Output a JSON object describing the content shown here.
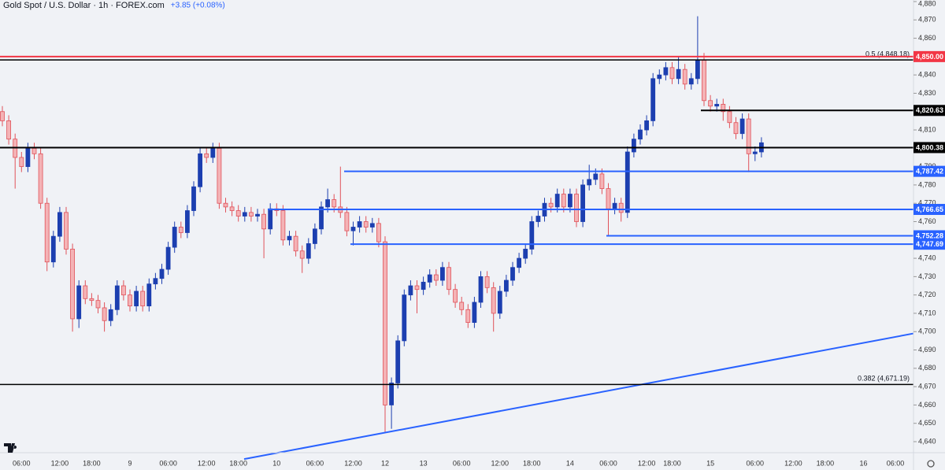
{
  "chart_data": {
    "type": "candlestick",
    "title": "Gold Spot / U.S. Dollar · 1h · FOREX.com",
    "subtitle": "+3.85 (+0.08%)",
    "up_color": "#1c3fb0",
    "down_color": "#f4b3b6",
    "down_edge_color": "#e0525a",
    "categories": [
      null,
      null,
      null,
      "06:00",
      null,
      null,
      null,
      null,
      null,
      "12:00",
      null,
      null,
      null,
      null,
      "18:00",
      null,
      null,
      null,
      null,
      null,
      "9",
      null,
      null,
      null,
      null,
      null,
      "06:00",
      null,
      null,
      null,
      null,
      null,
      "12:00",
      null,
      null,
      null,
      null,
      "18:00",
      null,
      null,
      null,
      null,
      null,
      "10",
      null,
      null,
      null,
      null,
      null,
      "06:00",
      null,
      null,
      null,
      null,
      null,
      "12:00",
      null,
      null,
      null,
      null,
      "12",
      null,
      null,
      null,
      null,
      null,
      "13",
      null,
      null,
      null,
      null,
      null,
      "06:00",
      null,
      null,
      null,
      null,
      null,
      "12:00",
      null,
      null,
      null,
      null,
      "18:00",
      null,
      null,
      null,
      null,
      null,
      "14",
      null,
      null,
      null,
      null,
      null,
      "06:00",
      null,
      null,
      null,
      null,
      null,
      "12:00",
      null,
      null,
      null,
      "18:00",
      null,
      null,
      null,
      null,
      null,
      "15",
      null,
      null,
      null,
      null,
      null,
      null,
      "06:00",
      null,
      null,
      null,
      null,
      null,
      "12:00",
      null,
      null,
      null,
      null,
      "18:00",
      null,
      null,
      null,
      null,
      null,
      "16",
      null,
      null,
      null,
      null,
      "06:00",
      null,
      null
    ],
    "open": [
      4820,
      4815,
      4805,
      4795,
      4790,
      4800,
      4797,
      4770,
      4738,
      4752,
      4765,
      4745,
      4707,
      4725,
      4718,
      4717,
      4713,
      4706,
      4712,
      4725,
      4720,
      4714,
      4722,
      4714,
      4726,
      4729,
      4734,
      4746,
      4757,
      4754,
      4766,
      4779,
      4797,
      4795,
      4800,
      4770,
      4768,
      4766,
      4763,
      4765,
      4763,
      4764,
      4756,
      4767,
      4766,
      4750,
      4752,
      4744,
      4740,
      4748,
      4756,
      4768,
      4772,
      4768,
      4765,
      4755,
      4757,
      4760,
      4757,
      4759,
      4749,
      4660,
      4672,
      4695,
      4720,
      4725,
      4723,
      4727,
      4731,
      4728,
      4735,
      4723,
      4716,
      4712,
      4705,
      4716,
      4730,
      4724,
      4710,
      4722,
      4728,
      4735,
      4740,
      4745,
      4760,
      4763,
      4770,
      4768,
      4775,
      4768,
      4775,
      4760,
      4780,
      4783,
      4786,
      4778,
      4767,
      4770,
      4765,
      4798,
      4805,
      4810,
      4815,
      4838,
      4840,
      4844,
      4838,
      4843,
      4835,
      4838,
      4848,
      4826,
      4823,
      4824,
      4820,
      4814,
      4808,
      4816,
      4797,
      4798,
      null,
      null,
      null,
      null,
      null,
      null,
      null,
      null,
      null,
      null,
      null,
      null,
      null,
      null,
      null,
      null,
      null,
      null,
      null,
      null,
      null,
      null,
      null
    ],
    "high": [
      4823,
      4818,
      4808,
      4798,
      4803,
      4803,
      4800,
      4773,
      4755,
      4768,
      4768,
      4748,
      4728,
      4728,
      4721,
      4720,
      4716,
      4715,
      4728,
      4728,
      4723,
      4725,
      4725,
      4729,
      4732,
      4737,
      4749,
      4760,
      4760,
      4769,
      4782,
      4800,
      4800,
      4803,
      4803,
      4773,
      4771,
      4769,
      4768,
      4768,
      4767,
      4767,
      4770,
      4770,
      4769,
      4755,
      4755,
      4747,
      4751,
      4759,
      4771,
      4778,
      4775,
      4790,
      4768,
      4760,
      4763,
      4763,
      4762,
      4762,
      4752,
      4675,
      4698,
      4723,
      4728,
      4728,
      4730,
      4734,
      4734,
      4738,
      4738,
      4726,
      4719,
      4715,
      4719,
      4733,
      4733,
      4727,
      4725,
      4731,
      4738,
      4743,
      4748,
      4763,
      4766,
      4773,
      4773,
      4778,
      4778,
      4778,
      4778,
      4783,
      4791,
      4789,
      4789,
      4781,
      4773,
      4773,
      4801,
      4808,
      4813,
      4818,
      4841,
      4843,
      4847,
      4847,
      4850,
      4846,
      4841,
      4872,
      4852,
      4829,
      4827,
      4827,
      4823,
      4817,
      4819,
      4819,
      4801,
      4806,
      null,
      null,
      null,
      null,
      null,
      null,
      null,
      null,
      null,
      null,
      null,
      null,
      null,
      null,
      null,
      null,
      null,
      null,
      null,
      null,
      null,
      null,
      null
    ],
    "low": [
      4812,
      4802,
      4778,
      4787,
      4787,
      4794,
      4767,
      4733,
      4735,
      4749,
      4742,
      4700,
      4702,
      4715,
      4714,
      4710,
      4700,
      4703,
      4709,
      4717,
      4711,
      4711,
      4711,
      4711,
      4723,
      4726,
      4731,
      4743,
      4751,
      4751,
      4763,
      4776,
      4792,
      4792,
      4767,
      4765,
      4763,
      4760,
      4760,
      4760,
      4760,
      4740,
      4753,
      4763,
      4747,
      4747,
      4741,
      4732,
      4737,
      4745,
      4753,
      4765,
      4765,
      4762,
      4752,
      4747,
      4754,
      4754,
      4754,
      4746,
      4645,
      4647,
      4669,
      4692,
      4717,
      4710,
      4720,
      4724,
      4725,
      4725,
      4720,
      4713,
      4709,
      4702,
      4702,
      4713,
      4721,
      4700,
      4707,
      4719,
      4725,
      4732,
      4737,
      4742,
      4757,
      4760,
      4765,
      4765,
      4765,
      4765,
      4757,
      4757,
      4777,
      4780,
      4775,
      4752,
      4764,
      4760,
      4762,
      4795,
      4802,
      4807,
      4812,
      4835,
      4837,
      4835,
      4835,
      4832,
      4832,
      4835,
      4823,
      4820,
      4820,
      4815,
      4811,
      4805,
      4805,
      4787,
      4793,
      4795,
      null,
      null,
      null,
      null,
      null,
      null,
      null,
      null,
      null,
      null,
      null,
      null,
      null,
      null,
      null,
      null,
      null,
      null,
      null,
      null,
      null,
      null,
      null
    ],
    "close": [
      4815,
      4805,
      4795,
      4790,
      4800,
      4797,
      4770,
      4738,
      4752,
      4765,
      4745,
      4707,
      4725,
      4718,
      4717,
      4713,
      4706,
      4712,
      4725,
      4720,
      4714,
      4722,
      4714,
      4726,
      4729,
      4734,
      4746,
      4757,
      4754,
      4766,
      4779,
      4797,
      4795,
      4800,
      4770,
      4768,
      4766,
      4763,
      4765,
      4763,
      4764,
      4756,
      4767,
      4766,
      4750,
      4752,
      4744,
      4740,
      4748,
      4756,
      4768,
      4772,
      4768,
      4765,
      4755,
      4757,
      4760,
      4757,
      4759,
      4749,
      4660,
      4672,
      4695,
      4720,
      4725,
      4723,
      4727,
      4731,
      4728,
      4735,
      4723,
      4716,
      4712,
      4705,
      4716,
      4730,
      4724,
      4710,
      4722,
      4728,
      4735,
      4740,
      4745,
      4760,
      4763,
      4770,
      4768,
      4775,
      4768,
      4775,
      4760,
      4780,
      4783,
      4786,
      4778,
      4767,
      4770,
      4765,
      4798,
      4805,
      4810,
      4815,
      4838,
      4840,
      4844,
      4838,
      4843,
      4835,
      4838,
      4848,
      4826,
      4823,
      4824,
      4820,
      4814,
      4808,
      4816,
      4797,
      4798,
      4803,
      null,
      null,
      null,
      null,
      null,
      null,
      null,
      null,
      null,
      null,
      null,
      null,
      null,
      null,
      null,
      null,
      null,
      null,
      null,
      null,
      null,
      null,
      null
    ],
    "ylim": [
      4640,
      4880
    ],
    "yticks": [
      {
        "value": 4640,
        "label": "4,640"
      },
      {
        "value": 4650,
        "label": "4,650"
      },
      {
        "value": 4660,
        "label": "4,660"
      },
      {
        "value": 4670,
        "label": "4,670"
      },
      {
        "value": 4680,
        "label": "4,680"
      },
      {
        "value": 4690,
        "label": "4,690"
      },
      {
        "value": 4700,
        "label": "4,700"
      },
      {
        "value": 4710,
        "label": "4,710"
      },
      {
        "value": 4720,
        "label": "4,720"
      },
      {
        "value": 4730,
        "label": "4,730"
      },
      {
        "value": 4740,
        "label": "4,740"
      },
      {
        "value": 4750,
        "label": "4,750"
      },
      {
        "value": 4760,
        "label": "4,760"
      },
      {
        "value": 4770,
        "label": "4,770"
      },
      {
        "value": 4780,
        "label": "4,780"
      },
      {
        "value": 4790,
        "label": "4,790"
      },
      {
        "value": 4800,
        "label": "4,800"
      },
      {
        "value": 4810,
        "label": "4,810"
      },
      {
        "value": 4820,
        "label": "4,820"
      },
      {
        "value": 4830,
        "label": "4,830"
      },
      {
        "value": 4840,
        "label": "4,840"
      },
      {
        "value": 4850,
        "label": "4,850"
      },
      {
        "value": 4860,
        "label": "4,860"
      },
      {
        "value": 4870,
        "label": "4,870"
      },
      {
        "value": 4880,
        "label": "4,880"
      }
    ],
    "levels": [
      {
        "value": 4850,
        "label": "4,850.00",
        "color": "#f23645"
      },
      {
        "value": 4820.63,
        "label": "4,820.63",
        "color": "#000000"
      },
      {
        "value": 4800.38,
        "label": "4,800.38",
        "color": "#000000"
      },
      {
        "value": 4787.42,
        "label": "4,787.42",
        "color": "#2962ff"
      },
      {
        "value": 4766.65,
        "label": "4,766.65",
        "color": "#2962ff"
      },
      {
        "value": 4752.28,
        "label": "4,752.28",
        "color": "#2962ff"
      },
      {
        "value": 4747.69,
        "label": "4,747.69",
        "color": "#2962ff"
      }
    ],
    "fib_levels": [
      {
        "value": 4848.18,
        "label": "0.5 (4,848.18)",
        "color": "#000000"
      },
      {
        "value": 4671.19,
        "label": "0.382 (4,671.19)",
        "color": "#000000"
      }
    ],
    "trendline": {
      "values": [
        4630.5,
        4699
      ],
      "color": "#2962ff"
    }
  }
}
